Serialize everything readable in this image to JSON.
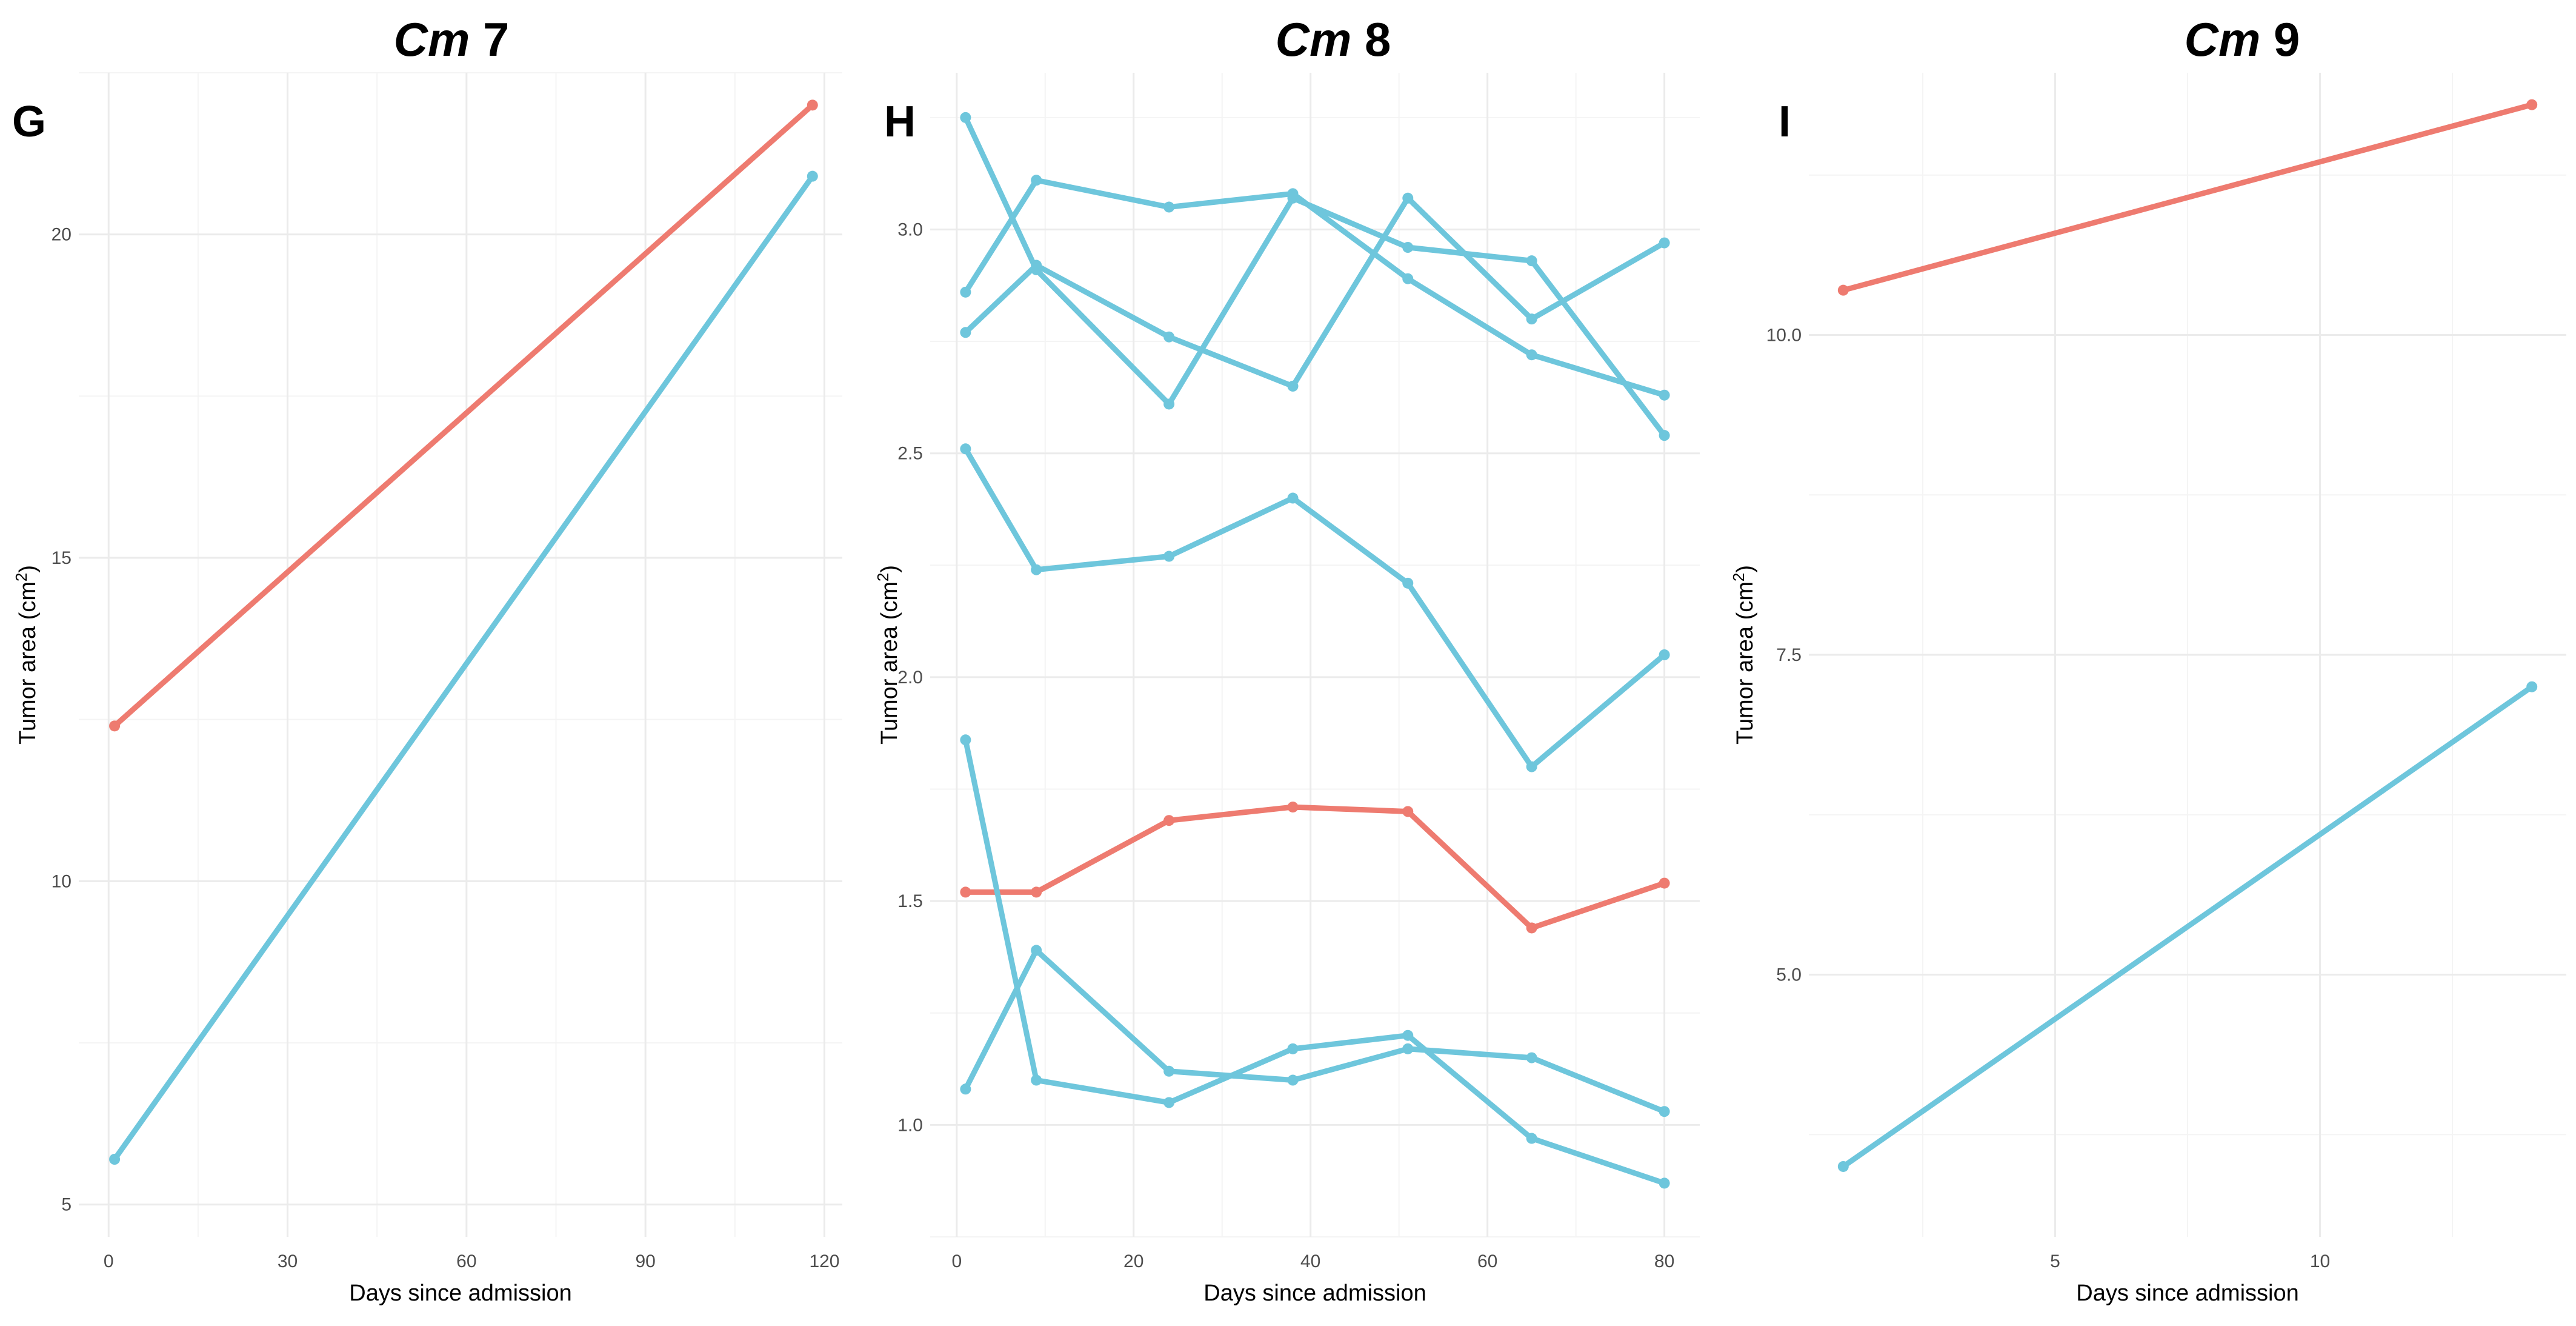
{
  "colors": {
    "red": "#ee7b70",
    "blue": "#6ec6dc"
  },
  "chart_data": [
    {
      "type": "line",
      "panel_letter": "G",
      "title_italic": "Cm",
      "title_rest": " 7",
      "xlabel": "Days since admission",
      "ylabel": "Tumor area (cm",
      "ylabel_sup": "2",
      "ylabel_end": ")",
      "xlim": [
        -5,
        123
      ],
      "ylim": [
        4.5,
        22.5
      ],
      "xticks": [
        0,
        30,
        60,
        90,
        120
      ],
      "xtick_labels": [
        "0",
        "30",
        "60",
        "90",
        "120"
      ],
      "yticks": [
        5,
        10,
        15,
        20
      ],
      "ytick_labels": [
        "5",
        "10",
        "15",
        "20"
      ],
      "series": [
        {
          "color": "red",
          "x": [
            1,
            118
          ],
          "y": [
            12.4,
            22
          ]
        },
        {
          "color": "blue",
          "x": [
            1,
            118
          ],
          "y": [
            5.7,
            20.9
          ]
        }
      ]
    },
    {
      "type": "line",
      "panel_letter": "H",
      "title_italic": "Cm",
      "title_rest": " 8",
      "xlabel": "Days since admission",
      "ylabel": "Tumor area (cm",
      "ylabel_sup": "2",
      "ylabel_end": ")",
      "xlim": [
        -3,
        84
      ],
      "ylim": [
        0.75,
        3.35
      ],
      "xticks": [
        0,
        20,
        40,
        60,
        80
      ],
      "xtick_labels": [
        "0",
        "20",
        "40",
        "60",
        "80"
      ],
      "yticks": [
        1.0,
        1.5,
        2.0,
        2.5,
        3.0
      ],
      "ytick_labels": [
        "1.0",
        "1.5",
        "2.0",
        "2.5",
        "3.0"
      ],
      "series": [
        {
          "color": "blue",
          "x": [
            1,
            9,
            24,
            38,
            51,
            65,
            80
          ],
          "y": [
            3.25,
            2.91,
            2.61,
            3.07,
            2.96,
            2.93,
            2.54
          ]
        },
        {
          "color": "blue",
          "x": [
            1,
            9,
            24,
            38,
            51,
            65,
            80
          ],
          "y": [
            2.86,
            3.11,
            3.05,
            3.08,
            2.89,
            2.72,
            2.63
          ]
        },
        {
          "color": "blue",
          "x": [
            1,
            9,
            24,
            38,
            51,
            65,
            80
          ],
          "y": [
            2.77,
            2.92,
            2.76,
            2.65,
            3.07,
            2.8,
            2.97
          ]
        },
        {
          "color": "blue",
          "x": [
            1,
            9,
            24,
            38,
            51,
            65,
            80
          ],
          "y": [
            2.51,
            2.24,
            2.27,
            2.4,
            2.21,
            1.8,
            2.05
          ]
        },
        {
          "color": "red",
          "x": [
            1,
            9,
            24,
            38,
            51,
            65,
            80
          ],
          "y": [
            1.52,
            1.52,
            1.68,
            1.71,
            1.7,
            1.44,
            1.54
          ]
        },
        {
          "color": "blue",
          "x": [
            1,
            9,
            24,
            38,
            51,
            65,
            80
          ],
          "y": [
            1.86,
            1.1,
            1.05,
            1.17,
            1.2,
            0.97,
            0.87
          ]
        },
        {
          "color": "blue",
          "x": [
            1,
            9,
            24,
            38,
            51,
            65,
            80
          ],
          "y": [
            1.08,
            1.39,
            1.12,
            1.1,
            1.17,
            1.15,
            1.03
          ]
        }
      ]
    },
    {
      "type": "line",
      "panel_letter": "I",
      "title_italic": "Cm",
      "title_rest": " 9",
      "xlabel": "Days since admission",
      "ylabel": "Tumor area (cm",
      "ylabel_sup": "2",
      "ylabel_end": ")",
      "xlim": [
        0.35,
        14.65
      ],
      "ylim": [
        2.95,
        12.05
      ],
      "xticks": [
        5,
        10
      ],
      "xtick_labels": [
        "5",
        "10"
      ],
      "yticks": [
        5.0,
        7.5,
        10.0
      ],
      "ytick_labels": [
        "5.0",
        "7.5",
        "10.0"
      ],
      "series": [
        {
          "color": "red",
          "x": [
            1,
            14
          ],
          "y": [
            10.35,
            11.8
          ]
        },
        {
          "color": "blue",
          "x": [
            1,
            14
          ],
          "y": [
            3.5,
            7.25
          ]
        }
      ]
    }
  ]
}
